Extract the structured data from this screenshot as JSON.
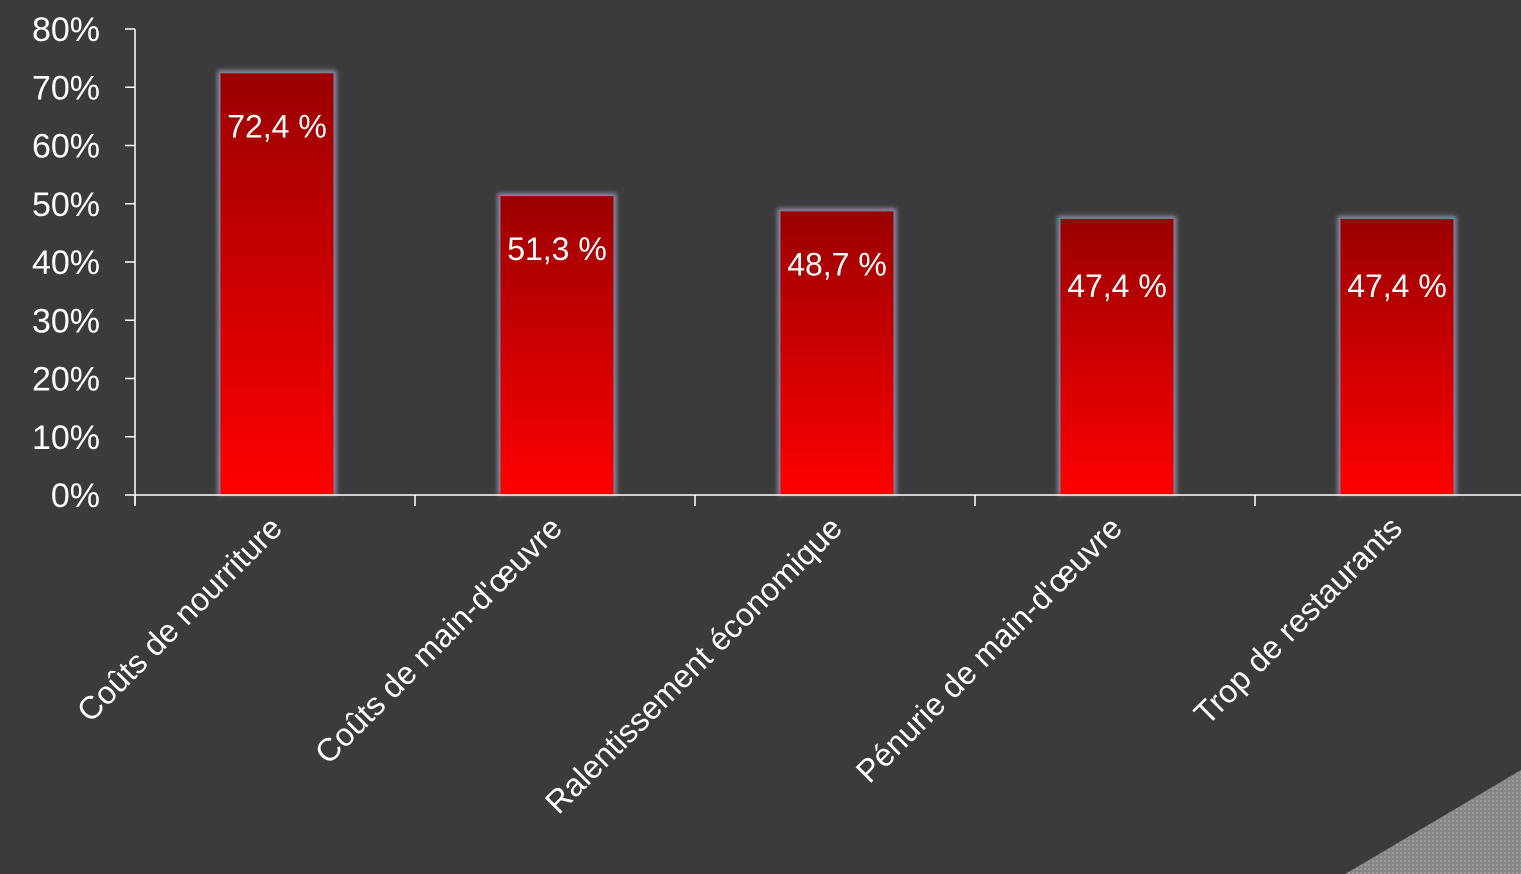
{
  "chart_data": {
    "type": "bar",
    "categories": [
      "Coûts de nourriture",
      "Coûts de main-d'œuvre",
      "Ralentissement économique",
      "Pénurie de main-d'œuvre",
      "Trop de restaurants"
    ],
    "values": [
      72.4,
      51.3,
      48.7,
      47.4,
      47.4
    ],
    "data_labels": [
      "72,4 %",
      "51,3 %",
      "48,7 %",
      "47,4 %",
      "47,4 %"
    ],
    "y_ticks": [
      "0%",
      "10%",
      "20%",
      "30%",
      "40%",
      "50%",
      "60%",
      "70%",
      "80%"
    ],
    "ylim": [
      0,
      80
    ],
    "grid": false,
    "legend": "none",
    "colors": {
      "background": "#3b3b3b",
      "bar_top": "#9a0000",
      "bar_bottom": "#ff0000",
      "bar_glow": "#9ea3c4",
      "axis": "#ffffff",
      "text": "#ffffff"
    }
  }
}
